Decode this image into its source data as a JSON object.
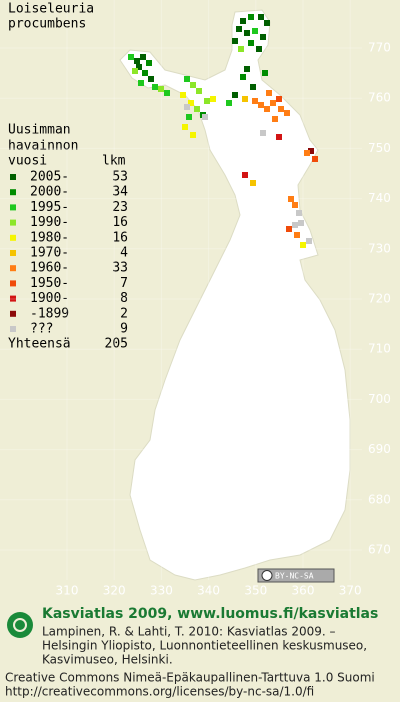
{
  "species": [
    "Loiseleuria",
    "procumbens"
  ],
  "legend": {
    "header": [
      "Uusimman",
      "havainnon"
    ],
    "col1": "vuosi",
    "col2": "lkm",
    "rows": [
      {
        "label": "2005-",
        "count": 53,
        "color": "#005f00"
      },
      {
        "label": "2000-",
        "count": 34,
        "color": "#008c00"
      },
      {
        "label": "1995-",
        "count": 23,
        "color": "#1ec81e"
      },
      {
        "label": "1990-",
        "count": 16,
        "color": "#8ce628"
      },
      {
        "label": "1980-",
        "count": 16,
        "color": "#f5f500"
      },
      {
        "label": "1970-",
        "count": 4,
        "color": "#f5c300"
      },
      {
        "label": "1960-",
        "count": 33,
        "color": "#ff7d14"
      },
      {
        "label": "1950-",
        "count": 7,
        "color": "#f04b0a"
      },
      {
        "label": "1900-",
        "count": 8,
        "color": "#d21414"
      },
      {
        "label": "-1899",
        "count": 2,
        "color": "#8c0a0a"
      },
      {
        "label": "???",
        "count": 9,
        "color": "#c8c8c8"
      }
    ],
    "total": {
      "label": "Yhteensä",
      "count": 205
    }
  },
  "axes": {
    "y_labels": [
      770,
      760,
      750,
      740,
      730,
      720,
      710,
      700,
      690,
      680,
      670
    ],
    "x_labels": [
      310,
      320,
      330,
      340,
      350,
      360,
      370
    ]
  },
  "badge": "BY-NC-SA",
  "footer": {
    "title": "Kasviatlas 2009, www.luomus.fi/kasviatlas",
    "citation": [
      "Lampinen, R. & Lahti, T. 2010: Kasviatlas 2009. –",
      "Helsingin Yliopisto, Luonnontieteellinen keskusmuseo,",
      "Kasvimuseo, Helsinki."
    ],
    "license": [
      "Creative Commons Nimeä-Epäkaupallinen-Tarttuva 1.0 Suomi",
      "http://creativecommons.org/licenses/by-nc-sa/1.0/fi"
    ]
  }
}
